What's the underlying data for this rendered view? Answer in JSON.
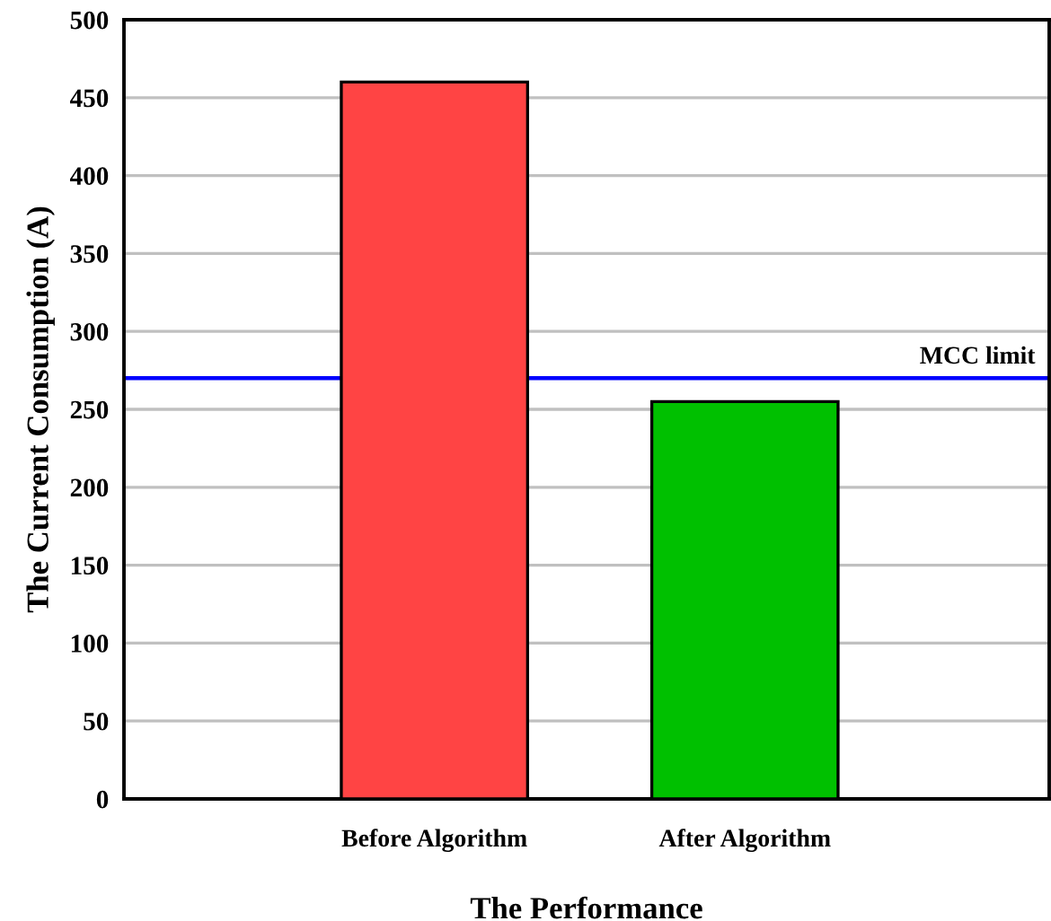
{
  "chart_data": {
    "type": "bar",
    "xlabel": "The Performance",
    "ylabel": "The Current Consumption (A)",
    "categories": [
      "Before Algorithm",
      "After Algorithm"
    ],
    "values": [
      460,
      255
    ],
    "colors": [
      "#ff4444",
      "#00c000"
    ],
    "ylim": [
      0,
      500
    ],
    "yticks": [
      0,
      50,
      100,
      150,
      200,
      250,
      300,
      350,
      400,
      450,
      500
    ],
    "grid": "y",
    "ref_lines": [
      {
        "axis": "y",
        "value": 270,
        "label": "MCC limit",
        "color": "#0000ff"
      }
    ]
  }
}
